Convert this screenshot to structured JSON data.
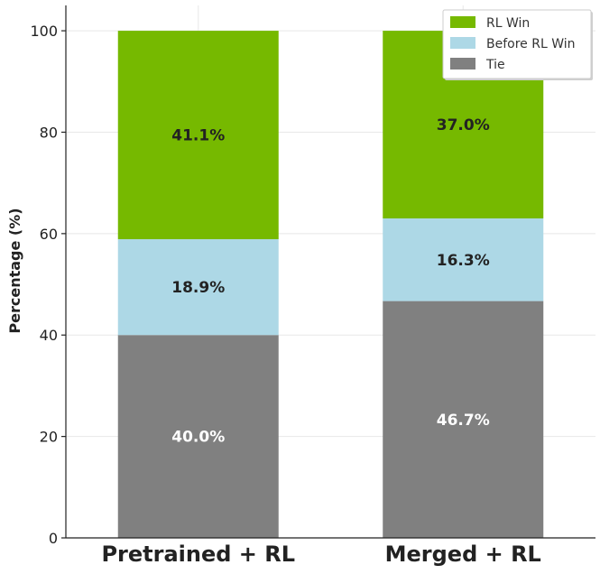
{
  "chart_data": {
    "type": "bar",
    "stacked": true,
    "categories": [
      "Pretrained + RL",
      "Merged + RL"
    ],
    "series": [
      {
        "name": "Tie",
        "values": [
          40.0,
          46.7
        ],
        "labels": [
          "40.0%",
          "46.7%"
        ],
        "color": "#808080",
        "label_color": "#ffffff"
      },
      {
        "name": "Before RL Win",
        "values": [
          18.9,
          16.3
        ],
        "labels": [
          "18.9%",
          "16.3%"
        ],
        "color": "#add8e6",
        "label_color": "#222222"
      },
      {
        "name": "RL Win",
        "values": [
          41.1,
          37.0
        ],
        "labels": [
          "41.1%",
          "37.0%"
        ],
        "color": "#76b900",
        "label_color": "#222222"
      }
    ],
    "legend_order": [
      "RL Win",
      "Before RL Win",
      "Tie"
    ],
    "legend_position": "top-right",
    "title": "",
    "xlabel": "",
    "ylabel": "Percentage (%)",
    "ylim": [
      0,
      105
    ],
    "yticks": [
      0,
      20,
      40,
      60,
      80,
      100
    ],
    "grid": true
  }
}
